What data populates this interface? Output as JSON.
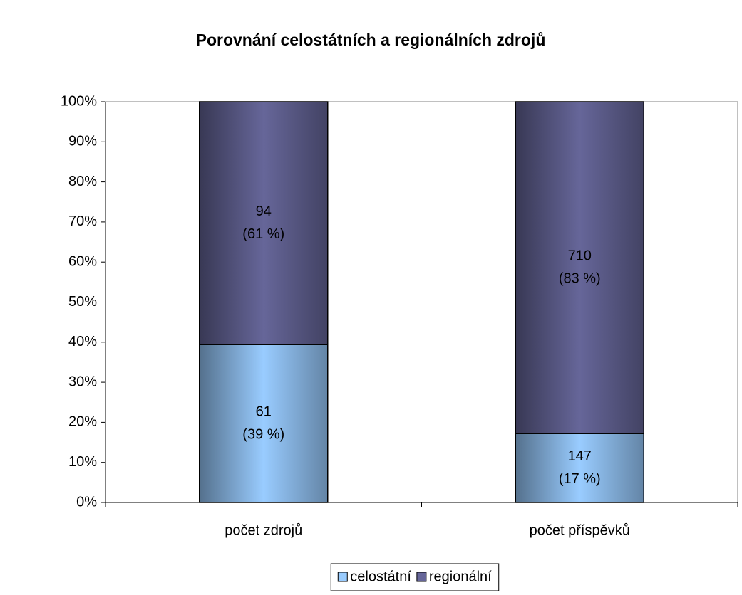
{
  "chart_data": {
    "type": "stacked_bar_100",
    "title": "Porovnání celostátních a regionálních zdrojů",
    "categories": [
      "počet zdrojů",
      "počet příspěvků"
    ],
    "series": [
      {
        "name": "celostátní",
        "color": "#99ccff",
        "values": [
          39.4,
          17.2
        ],
        "value_labels": [
          [
            "61",
            "(39 %)"
          ],
          [
            "147",
            "(17 %)"
          ]
        ]
      },
      {
        "name": "regionální",
        "color": "#666699",
        "values": [
          60.6,
          82.8
        ],
        "value_labels": [
          [
            "94",
            "(61 %)"
          ],
          [
            "710",
            "(83 %)"
          ]
        ]
      }
    ],
    "ylim": [
      0,
      100
    ],
    "yticks": [
      {
        "value": 0,
        "label": "0%"
      },
      {
        "value": 10,
        "label": "10%"
      },
      {
        "value": 20,
        "label": "20%"
      },
      {
        "value": 30,
        "label": "30%"
      },
      {
        "value": 40,
        "label": "40%"
      },
      {
        "value": 50,
        "label": "50%"
      },
      {
        "value": 60,
        "label": "60%"
      },
      {
        "value": 70,
        "label": "70%"
      },
      {
        "value": 80,
        "label": "80%"
      },
      {
        "value": 90,
        "label": "90%"
      },
      {
        "value": 100,
        "label": "100%"
      }
    ],
    "grid": false,
    "legend": "bottom"
  }
}
